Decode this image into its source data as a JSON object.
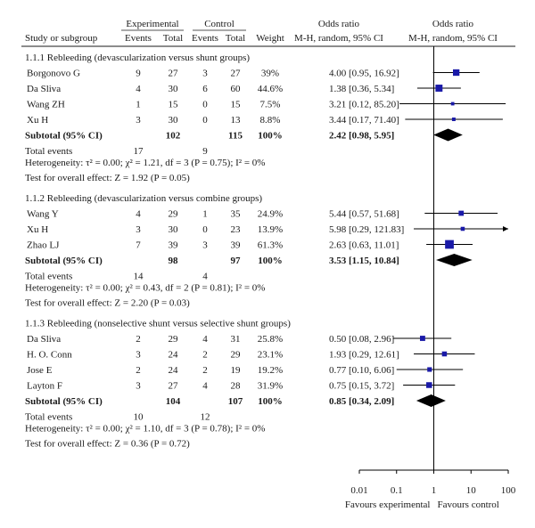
{
  "chart_data": {
    "type": "forest",
    "scale": "log",
    "xlim": [
      0.01,
      100
    ],
    "reference_line": 1,
    "colors": {
      "square": "#1a1aa8",
      "diamond": "#000000",
      "line": "#000000"
    },
    "header": {
      "group_experimental": "Experimental",
      "group_control": "Control",
      "effect_label": "Odds ratio",
      "plot_label": "Odds ratio",
      "col_study": "Study or subgroup",
      "col_events": "Events",
      "col_total": "Total",
      "col_ctrl_events": "Events",
      "col_ctrl_total": "Total",
      "col_weight": "Weight",
      "col_method": "M-H, random, 95% CI",
      "col_plot_method": "M-H, random, 95% CI"
    },
    "groups": [
      {
        "title": "1.1.1 Rebleeding (devascularization versus shunt groups)",
        "studies": [
          {
            "name": "Borgonovo G",
            "e_events": "9",
            "e_total": "27",
            "c_events": "3",
            "c_total": "27",
            "weight": "39%",
            "ci_text": "4.00 [0.95, 16.92]",
            "or": 4.0,
            "lo": 0.95,
            "hi": 16.92
          },
          {
            "name": "Da Sliva",
            "e_events": "4",
            "e_total": "30",
            "c_events": "6",
            "c_total": "60",
            "weight": "44.6%",
            "ci_text": "1.38 [0.36, 5.34]",
            "or": 1.38,
            "lo": 0.36,
            "hi": 5.34
          },
          {
            "name": "Wang ZH",
            "e_events": "1",
            "e_total": "15",
            "c_events": "0",
            "c_total": "15",
            "weight": "7.5%",
            "ci_text": "3.21 [0.12, 85.20]",
            "or": 3.21,
            "lo": 0.12,
            "hi": 85.2
          },
          {
            "name": "Xu H",
            "e_events": "3",
            "e_total": "30",
            "c_events": "0",
            "c_total": "13",
            "weight": "8.8%",
            "ci_text": "3.44 [0.17, 71.40]",
            "or": 3.44,
            "lo": 0.17,
            "hi": 71.4
          }
        ],
        "subtotal": {
          "label": "Subtotal (95% CI)",
          "e_total": "102",
          "c_total": "115",
          "weight": "100%",
          "ci_text": "2.42 [0.98, 5.95]",
          "or": 2.42,
          "lo": 0.98,
          "hi": 5.95
        },
        "total_events": {
          "label": "Total events",
          "e": "17",
          "c": "9"
        },
        "heterogeneity": "Heterogeneity: τ² = 0.00; χ² = 1.21, df = 3 (P = 0.75); I² = 0%",
        "overall": "Test for overall effect: Z = 1.92 (P = 0.05)"
      },
      {
        "title": "1.1.2 Rebleeding (devascularization versus combine groups)",
        "studies": [
          {
            "name": "Wang Y",
            "e_events": "4",
            "e_total": "29",
            "c_events": "1",
            "c_total": "35",
            "weight": "24.9%",
            "ci_text": "5.44 [0.57, 51.68]",
            "or": 5.44,
            "lo": 0.57,
            "hi": 51.68
          },
          {
            "name": "Xu H",
            "e_events": "3",
            "e_total": "30",
            "c_events": "0",
            "c_total": "23",
            "weight": "13.9%",
            "ci_text": "5.98 [0.29, 121.83]",
            "or": 5.98,
            "lo": 0.29,
            "hi": 121.83
          },
          {
            "name": "Zhao LJ",
            "e_events": "7",
            "e_total": "39",
            "c_events": "3",
            "c_total": "39",
            "weight": "61.3%",
            "ci_text": "2.63 [0.63, 11.01]",
            "or": 2.63,
            "lo": 0.63,
            "hi": 11.01
          }
        ],
        "subtotal": {
          "label": "Subtotal (95% CI)",
          "e_total": "98",
          "c_total": "97",
          "weight": "100%",
          "ci_text": "3.53 [1.15, 10.84]",
          "or": 3.53,
          "lo": 1.15,
          "hi": 10.84
        },
        "total_events": {
          "label": "Total events",
          "e": "14",
          "c": "4"
        },
        "heterogeneity": "Heterogeneity: τ² = 0.00; χ² = 0.43, df = 2 (P = 0.81); I² = 0%",
        "overall": "Test for overall effect: Z = 2.20 (P = 0.03)"
      },
      {
        "title": "1.1.3 Rebleeding (nonselective shunt versus selective shunt groups)",
        "studies": [
          {
            "name": "Da Sliva",
            "e_events": "2",
            "e_total": "29",
            "c_events": "4",
            "c_total": "31",
            "weight": "25.8%",
            "ci_text": "0.50 [0.08, 2.96]",
            "or": 0.5,
            "lo": 0.08,
            "hi": 2.96
          },
          {
            "name": "H. O. Conn",
            "e_events": "3",
            "e_total": "24",
            "c_events": "2",
            "c_total": "29",
            "weight": "23.1%",
            "ci_text": "1.93 [0.29, 12.61]",
            "or": 1.93,
            "lo": 0.29,
            "hi": 12.61
          },
          {
            "name": "Jose E",
            "e_events": "2",
            "e_total": "24",
            "c_events": "2",
            "c_total": "19",
            "weight": "19.2%",
            "ci_text": "0.77 [0.10, 6.06]",
            "or": 0.77,
            "lo": 0.1,
            "hi": 6.06
          },
          {
            "name": "Layton F",
            "e_events": "3",
            "e_total": "27",
            "c_events": "4",
            "c_total": "28",
            "weight": "31.9%",
            "ci_text": "0.75 [0.15, 3.72]",
            "or": 0.75,
            "lo": 0.15,
            "hi": 3.72
          }
        ],
        "subtotal": {
          "label": "Subtotal (95% CI)",
          "e_total": "104",
          "c_total": "107",
          "weight": "100%",
          "ci_text": "0.85 [0.34, 2.09]",
          "or": 0.85,
          "lo": 0.34,
          "hi": 2.09
        },
        "total_events": {
          "label": "Total events",
          "e": "10",
          "c": "12"
        },
        "heterogeneity": "Heterogeneity: τ² = 0.00; χ² = 1.10, df = 3 (P = 0.78); I² = 0%",
        "overall": "Test for overall effect: Z = 0.36 (P = 0.72)"
      }
    ],
    "x_ticks": [
      {
        "value": 0.01,
        "label": "0.01"
      },
      {
        "value": 0.1,
        "label": "0.1"
      },
      {
        "value": 1,
        "label": "1"
      },
      {
        "value": 10,
        "label": "10"
      },
      {
        "value": 100,
        "label": "100"
      }
    ],
    "favours_left": "Favours experimental",
    "favours_right": "Favours control"
  }
}
